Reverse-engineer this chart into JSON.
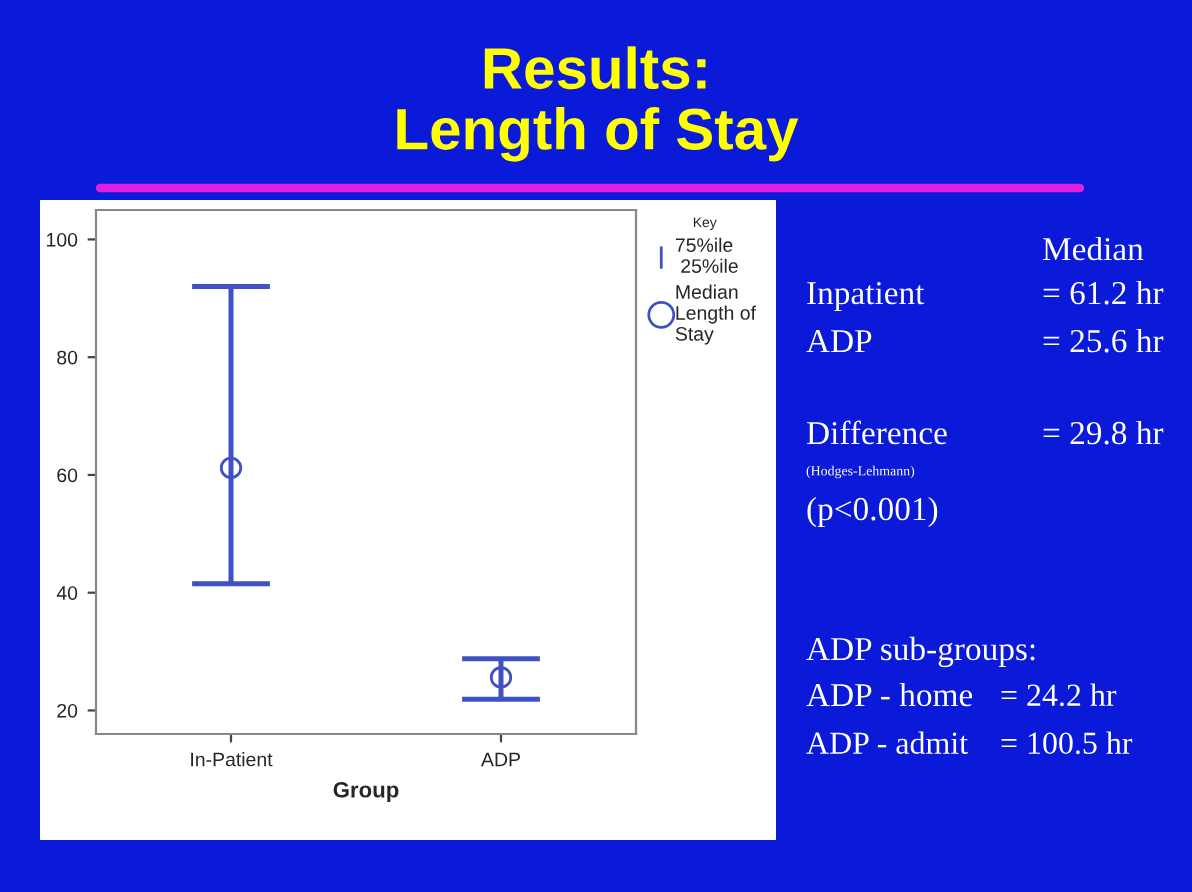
{
  "chart_data": {
    "type": "scatter",
    "title": "Results:\nLength of Stay",
    "xlabel": "Group",
    "legend_title": "Key",
    "categories": [
      "In-Patient",
      "ADP"
    ],
    "series": [
      {
        "name": "Median Length of Stay",
        "color": "#3f51c4",
        "values": [
          61.2,
          25.6
        ],
        "errors": [
          [
            41.5,
            92.0
          ],
          [
            21.9,
            28.8
          ]
        ]
      }
    ],
    "ylim": [
      16,
      105
    ],
    "yticks": [
      20,
      40,
      60,
      80,
      100
    ],
    "grid": false,
    "legend": "right",
    "marker": "circle",
    "annotations": [
      "75%ile\n 25%ile",
      "Median",
      "Inpatient",
      "= 61.2 hr",
      "ADP",
      "= 25.6 hr",
      "Difference",
      "= 29.8 hr",
      "(Hodges-Lehmann)",
      "(p<0.001)",
      "ADP sub-groups:",
      "ADP - home",
      "= 24.2 hr",
      "ADP - admit",
      "= 100.5 hr"
    ]
  }
}
